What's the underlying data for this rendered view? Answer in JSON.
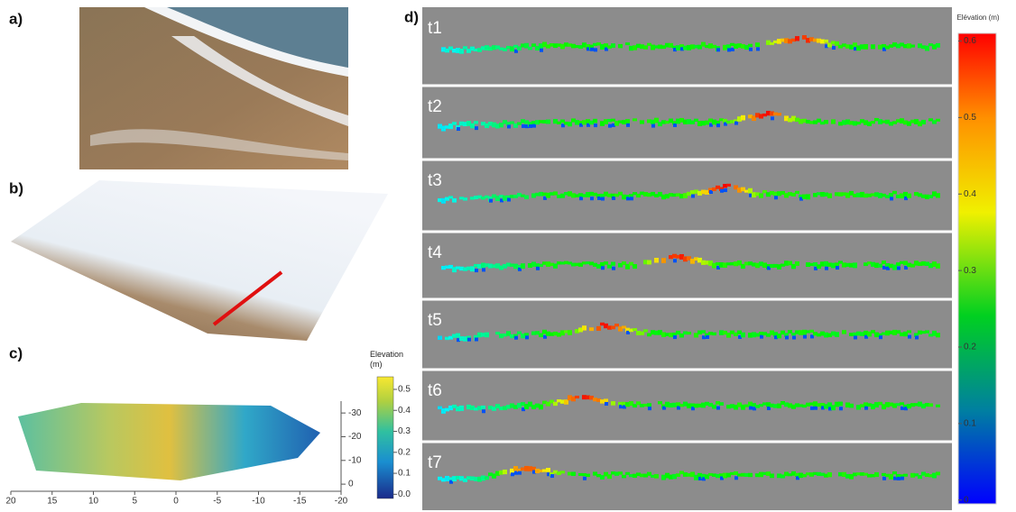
{
  "panel_labels": [
    "a)",
    "b)",
    "c)",
    "d)"
  ],
  "map": {
    "xlim": [
      20,
      -20
    ],
    "ylim": [
      3,
      -35
    ],
    "xticks": [
      20,
      15,
      10,
      5,
      0,
      -5,
      -10,
      -15,
      -20
    ],
    "yticks": [
      -30,
      -20,
      -10,
      0
    ]
  },
  "map_colorbar": {
    "title": "Elevation (m)",
    "lim": [
      -0.02,
      0.56
    ],
    "ticks": [
      {
        "value": 0,
        "label": "0.0"
      },
      0.1,
      0.2,
      0.3,
      0.4,
      0.5
    ]
  },
  "profiles": {
    "labels": [
      "t1",
      "t2",
      "t3",
      "t4",
      "t5",
      "t6",
      "t7"
    ],
    "colorbar": {
      "title": "Elévation (m)",
      "lim": [
        -0.005,
        0.61
      ],
      "ticks": [
        0,
        0.1,
        0.2,
        0.3,
        0.4,
        0.5,
        0.6
      ]
    }
  }
}
